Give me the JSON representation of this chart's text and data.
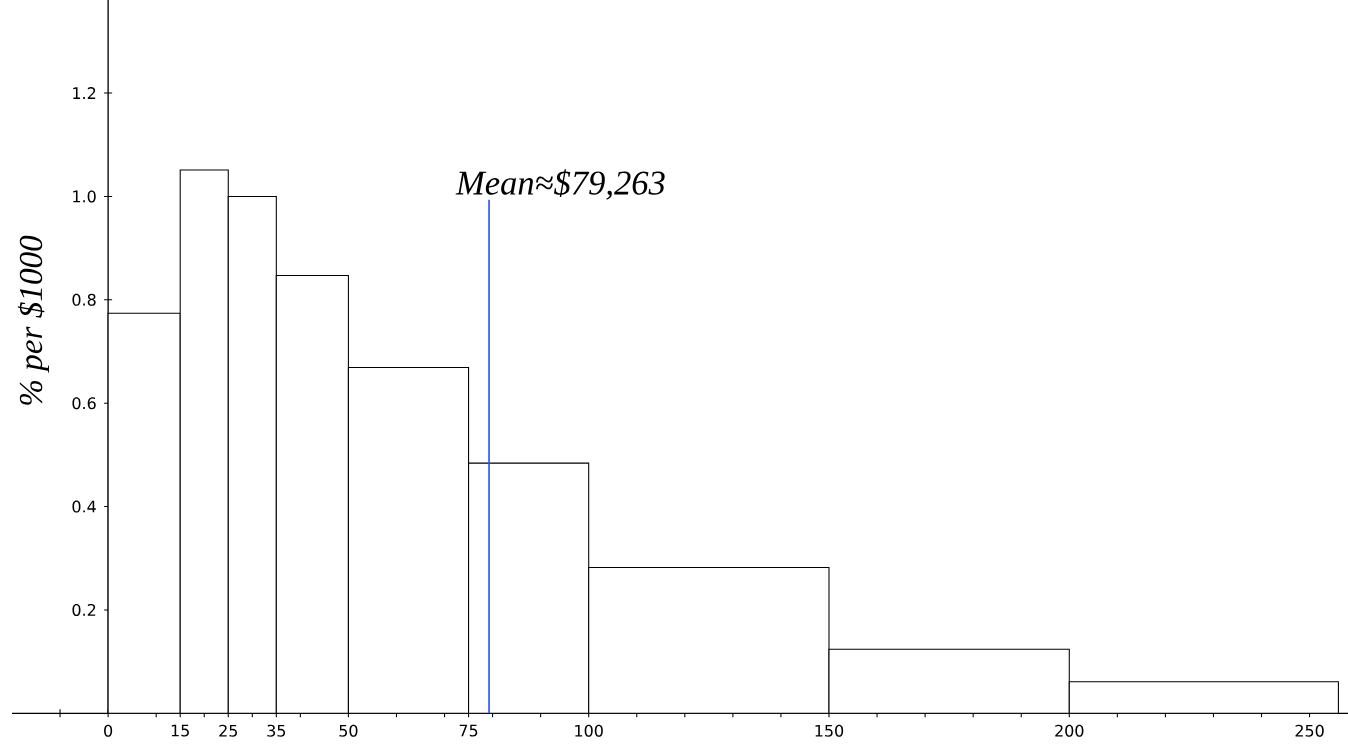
{
  "chart_data": {
    "type": "histogram",
    "ylabel": "% per $1000",
    "bins": [
      0,
      15,
      25,
      35,
      50,
      75,
      100,
      150,
      200,
      256
    ],
    "values": [
      0.774,
      1.051,
      1.0,
      0.847,
      0.669,
      0.484,
      0.282,
      0.124,
      0.061
    ],
    "color": "#000000",
    "xlim": [
      -20,
      258
    ],
    "ylim": [
      0,
      1.38
    ],
    "xticks": [
      {
        "value": -10,
        "label": null
      },
      0,
      {
        "value": 10,
        "label": null
      },
      15,
      {
        "value": 20,
        "label": null
      },
      25,
      {
        "value": 30,
        "label": null
      },
      35,
      {
        "value": 40,
        "label": null
      },
      50,
      {
        "value": 60,
        "label": null
      },
      {
        "value": 70,
        "label": null
      },
      75,
      {
        "value": 80,
        "label": null
      },
      {
        "value": 90,
        "label": null
      },
      100,
      {
        "value": 110,
        "label": null
      },
      {
        "value": 120,
        "label": null
      },
      {
        "value": 130,
        "label": null
      },
      {
        "value": 140,
        "label": null
      },
      150,
      {
        "value": 160,
        "label": null
      },
      {
        "value": 170,
        "label": null
      },
      {
        "value": 180,
        "label": null
      },
      {
        "value": 190,
        "label": null
      },
      200,
      {
        "value": 210,
        "label": null
      },
      {
        "value": 220,
        "label": null
      },
      {
        "value": 230,
        "label": null
      },
      {
        "value": 240,
        "label": null
      },
      250
    ],
    "yticks": [
      0.2,
      0.4,
      0.6,
      0.8,
      {
        "value": 1.0,
        "label": "1.0"
      },
      1.2
    ],
    "grid": false,
    "ref_lines": [
      {
        "axis": "x",
        "value": 79.263,
        "label": "Mean≈$79,263",
        "color": "#1f4fff"
      }
    ]
  }
}
